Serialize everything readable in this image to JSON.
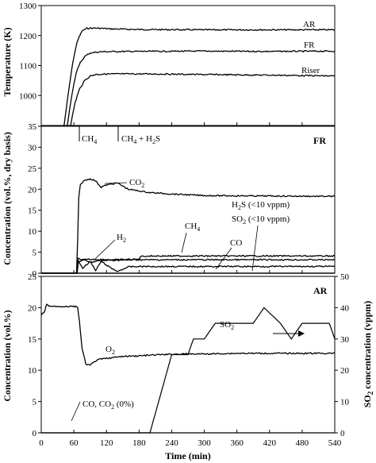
{
  "chart_data": [
    {
      "type": "line",
      "ylabel": "Temperature (K)",
      "xlim": [
        0,
        540
      ],
      "ylim": [
        900,
        1300
      ],
      "yticks": [
        1000,
        1100,
        1200,
        1300
      ],
      "series": [
        {
          "name": "AR",
          "x": [
            42,
            50,
            58,
            66,
            75,
            84,
            100,
            130,
            180,
            300,
            420,
            540
          ],
          "y": [
            900,
            1010,
            1110,
            1180,
            1215,
            1224,
            1225,
            1222,
            1220,
            1219,
            1219,
            1219
          ]
        },
        {
          "name": "FR",
          "x": [
            48,
            56,
            64,
            72,
            80,
            90,
            110,
            160,
            300,
            420,
            540
          ],
          "y": [
            900,
            1000,
            1075,
            1110,
            1130,
            1142,
            1146,
            1147,
            1148,
            1147,
            1148
          ]
        },
        {
          "name": "Riser",
          "x": [
            54,
            62,
            70,
            80,
            90,
            100,
            120,
            200,
            300,
            420,
            540
          ],
          "y": [
            900,
            975,
            1020,
            1050,
            1065,
            1070,
            1072,
            1072,
            1070,
            1068,
            1065
          ]
        }
      ],
      "annotations": [
        "AR",
        "FR",
        "Riser"
      ]
    },
    {
      "type": "line",
      "ylabel": "Concentration (vol.%, dry basis)",
      "xlim": [
        0,
        540
      ],
      "ylim": [
        0,
        35
      ],
      "yticks": [
        0,
        5,
        10,
        15,
        20,
        25,
        30,
        35
      ],
      "series": [
        {
          "name": "CO2",
          "x": [
            0,
            65,
            67,
            69,
            72,
            78,
            90,
            100,
            110,
            120,
            140,
            160,
            200,
            250,
            300,
            400,
            540
          ],
          "y": [
            0,
            0,
            8,
            18,
            21,
            22,
            22.5,
            22,
            20.5,
            21,
            21.5,
            20,
            19.2,
            18.8,
            18.5,
            18.4,
            18.3
          ]
        },
        {
          "name": "CH4",
          "x": [
            0,
            66,
            67,
            75,
            100,
            140,
            160,
            180,
            182,
            200,
            300,
            400,
            540
          ],
          "y": [
            0,
            0,
            3.5,
            3.2,
            3.3,
            3.2,
            3.3,
            3.3,
            4.0,
            4.1,
            4.1,
            4.1,
            4.1
          ]
        },
        {
          "name": "CO",
          "x": [
            0,
            66,
            68,
            76,
            90,
            110,
            130,
            150,
            180,
            250,
            400,
            540
          ],
          "y": [
            0,
            0,
            2.5,
            3.2,
            2.6,
            3.0,
            3.1,
            3.1,
            3.2,
            3.2,
            3.2,
            3.2
          ]
        },
        {
          "name": "H2",
          "x": [
            0,
            66,
            68,
            76,
            90,
            100,
            110,
            125,
            140,
            160,
            180,
            250,
            400,
            540
          ],
          "y": [
            0,
            0,
            3.0,
            1.2,
            2.8,
            0.6,
            2.8,
            1.5,
            0.4,
            1.5,
            1.6,
            1.6,
            1.6,
            1.6
          ]
        },
        {
          "name": "H2S",
          "x": [
            0,
            540
          ],
          "y": [
            0,
            0
          ]
        },
        {
          "name": "SO2",
          "x": [
            0,
            540
          ],
          "y": [
            0,
            0
          ]
        }
      ],
      "annotations": [
        "FR",
        "CH4",
        "CH4 + H2S",
        "CO2",
        "H2",
        "CH4",
        "CO",
        "H2S (<10 vppm)",
        "SO2 (<10 vppm)"
      ],
      "event_markers_min": [
        70,
        140
      ]
    },
    {
      "type": "line",
      "xlabel": "Time (min)",
      "ylabel": "Concentration (vol.%)",
      "y2label": "SO2 concentration (vppm)",
      "xlim": [
        0,
        540
      ],
      "xticks": [
        0,
        60,
        120,
        180,
        240,
        300,
        360,
        420,
        480,
        540
      ],
      "ylim": [
        0,
        25
      ],
      "yticks": [
        0,
        5,
        10,
        15,
        20,
        25
      ],
      "y2lim": [
        0,
        50
      ],
      "y2ticks": [
        0,
        10,
        20,
        30,
        40,
        50
      ],
      "series": [
        {
          "name": "O2",
          "axis": "left",
          "x": [
            0,
            5,
            10,
            14,
            20,
            30,
            40,
            60,
            67,
            70,
            75,
            82,
            90,
            100,
            110,
            130,
            150,
            180,
            220,
            260,
            300,
            360,
            420,
            480,
            540
          ],
          "y": [
            18.8,
            19.2,
            20.5,
            20.3,
            20.2,
            20.2,
            20.2,
            20.2,
            20.1,
            18.0,
            13.5,
            11.0,
            10.8,
            11.5,
            11.8,
            12.0,
            12.2,
            12.3,
            12.5,
            12.6,
            12.6,
            12.7,
            12.7,
            12.7,
            12.7
          ]
        },
        {
          "name": "CO, CO2",
          "axis": "left",
          "x": [
            0,
            540
          ],
          "y": [
            0,
            0
          ]
        },
        {
          "name": "SO2",
          "axis": "right",
          "x": [
            0,
            200,
            240,
            270,
            280,
            300,
            320,
            340,
            390,
            410,
            440,
            460,
            480,
            500,
            530,
            540
          ],
          "y": [
            0,
            0,
            25,
            25,
            30,
            30,
            35,
            35,
            35,
            40,
            35,
            30,
            35,
            35,
            35,
            30
          ]
        }
      ],
      "annotations": [
        "AR",
        "O2",
        "SO2",
        "CO, CO2 (0%)"
      ]
    }
  ],
  "texts": {
    "p1_ylabel": "Temperature (K)",
    "p2_ylabel": "Concentration (vol.%, dry basis)",
    "p3_ylabel": "Concentration  (vol.%)",
    "p3_y2label": "SO2 concentration (vppm)",
    "xlabel": "Time (min)",
    "ar": "AR",
    "fr": "FR",
    "riser": "Riser",
    "fr_panel": "FR",
    "ar_panel": "AR",
    "ch4_marker": "CH4",
    "ch4_h2s_marker": "CH4 + H2S",
    "co2": "CO2",
    "h2": "H2",
    "ch4": "CH4",
    "co": "CO",
    "h2s": "H2S (<10 vppm)",
    "so2_fr": "SO2 (<10 vppm)",
    "o2": "O2",
    "so2_ar": "SO2",
    "coco2": "CO, CO2 (0%)"
  }
}
